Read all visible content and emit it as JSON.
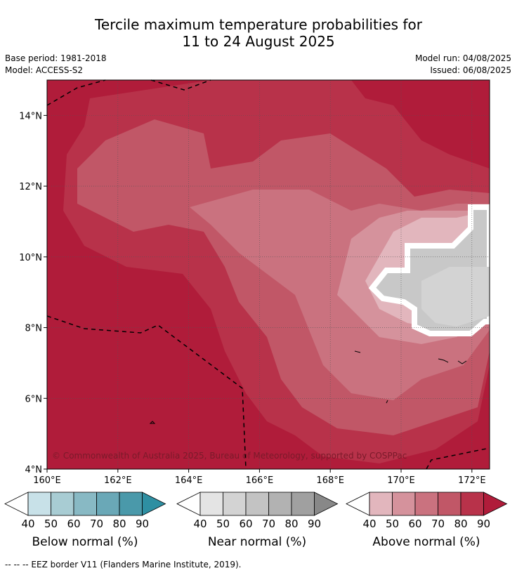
{
  "title_line1": "Tercile maximum temperature probabilities for",
  "title_line2": "11 to 24 August 2025",
  "base_period": "Base period: 1981-2018",
  "model": "Model: ACCESS-S2",
  "model_run": "Model run: 04/08/2025",
  "issued": "Issued: 06/08/2025",
  "copyright": "© Commonwealth of Australia 2025, Bureau of Meteorology, supported by COSPPac",
  "footer": "--  --  -- EEZ border V11 (Flanders Marine Institute, 2019).",
  "map": {
    "lon_range": [
      160,
      172.5
    ],
    "lat_range": [
      4,
      15
    ],
    "x_ticks": [
      "160°E",
      "162°E",
      "164°E",
      "166°E",
      "168°E",
      "170°E",
      "172°E"
    ],
    "y_ticks": [
      "14°N",
      "12°N",
      "10°N",
      "8°N",
      "6°N",
      "4°N"
    ]
  },
  "legends": [
    {
      "label": "Below normal (%)",
      "ticks": [
        "40",
        "50",
        "60",
        "70",
        "80",
        "90"
      ],
      "colors": [
        "#c8e1e8",
        "#a8ccd3",
        "#88b9c4",
        "#6aa8b7",
        "#4a99aa",
        "#2e8fa2"
      ]
    },
    {
      "label": "Near normal (%)",
      "ticks": [
        "40",
        "50",
        "60",
        "70",
        "80",
        "90"
      ],
      "colors": [
        "#e4e4e4",
        "#d3d3d3",
        "#c3c3c3",
        "#b2b2b2",
        "#a0a0a0",
        "#888888"
      ]
    },
    {
      "label": "Above normal (%)",
      "ticks": [
        "40",
        "50",
        "60",
        "70",
        "80",
        "90"
      ],
      "colors": [
        "#e2b6bd",
        "#d5929c",
        "#ca727f",
        "#c15767",
        "#b8324a",
        "#b01c3a"
      ]
    }
  ]
}
